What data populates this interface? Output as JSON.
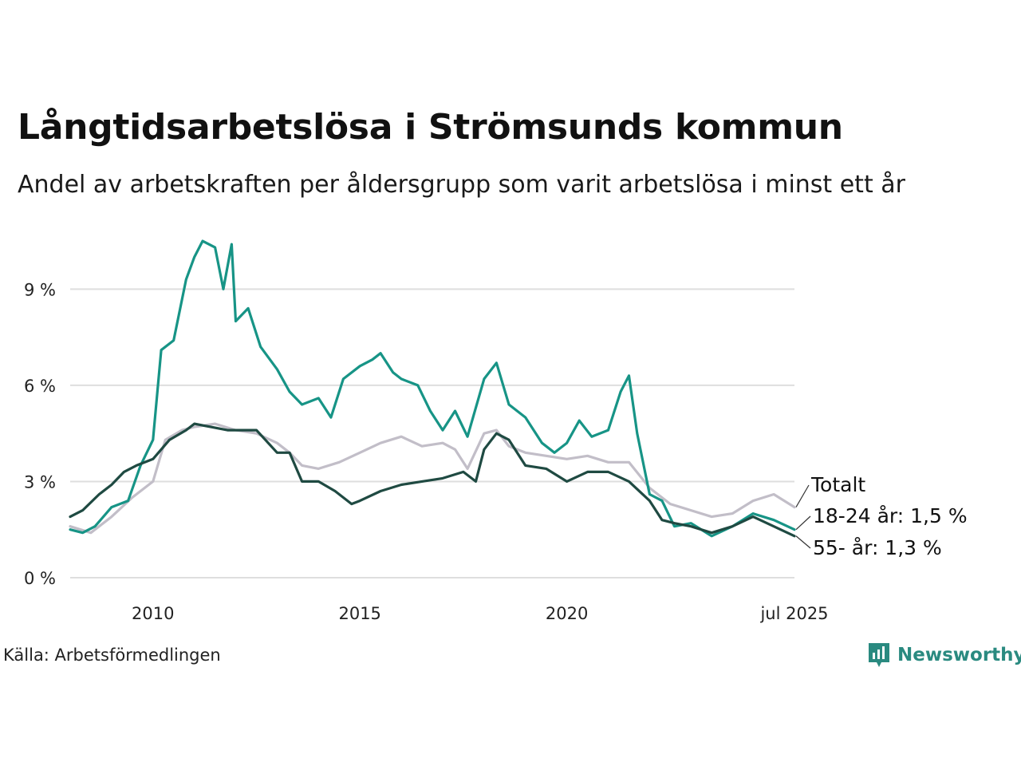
{
  "title": "Långtidsarbetslösa i Strömsunds kommun",
  "subtitle": "Andel av arbetskraften per åldersgrupp som varit arbetslösa i minst ett år",
  "source": "Källa: Arbetsförmedlingen",
  "brand": {
    "name": "Newsworthy",
    "icon": "newsworthy-logo-icon",
    "color": "#2a8a80"
  },
  "chart_data": {
    "type": "line",
    "y_unit": "%",
    "ylim": [
      0,
      10.8
    ],
    "xlim": [
      2008.0,
      2025.5
    ],
    "y_ticks": [
      {
        "value": 0,
        "label": "0 %"
      },
      {
        "value": 3,
        "label": "3 %"
      },
      {
        "value": 6,
        "label": "6 %"
      },
      {
        "value": 9,
        "label": "9 %"
      }
    ],
    "x_ticks": [
      {
        "value": 2010,
        "label": "2010"
      },
      {
        "value": 2015,
        "label": "2015"
      },
      {
        "value": 2020,
        "label": "2020"
      },
      {
        "value": 2025.5,
        "label": "jul 2025"
      }
    ],
    "grid": true,
    "legend": "end-labels",
    "series": [
      {
        "name": "Totalt",
        "end_label": "Totalt",
        "color": "#c2bec8",
        "points": [
          [
            2008.0,
            1.6
          ],
          [
            2008.5,
            1.4
          ],
          [
            2009.0,
            1.9
          ],
          [
            2009.5,
            2.5
          ],
          [
            2010.0,
            3.0
          ],
          [
            2010.3,
            4.3
          ],
          [
            2010.7,
            4.6
          ],
          [
            2011.0,
            4.7
          ],
          [
            2011.5,
            4.8
          ],
          [
            2012.0,
            4.6
          ],
          [
            2012.5,
            4.5
          ],
          [
            2013.0,
            4.2
          ],
          [
            2013.3,
            3.9
          ],
          [
            2013.6,
            3.5
          ],
          [
            2014.0,
            3.4
          ],
          [
            2014.5,
            3.6
          ],
          [
            2015.0,
            3.9
          ],
          [
            2015.5,
            4.2
          ],
          [
            2016.0,
            4.4
          ],
          [
            2016.5,
            4.1
          ],
          [
            2017.0,
            4.2
          ],
          [
            2017.3,
            4.0
          ],
          [
            2017.6,
            3.4
          ],
          [
            2018.0,
            4.5
          ],
          [
            2018.3,
            4.6
          ],
          [
            2018.6,
            4.1
          ],
          [
            2019.0,
            3.9
          ],
          [
            2019.5,
            3.8
          ],
          [
            2020.0,
            3.7
          ],
          [
            2020.5,
            3.8
          ],
          [
            2021.0,
            3.6
          ],
          [
            2021.5,
            3.6
          ],
          [
            2022.0,
            2.8
          ],
          [
            2022.5,
            2.3
          ],
          [
            2023.0,
            2.1
          ],
          [
            2023.5,
            1.9
          ],
          [
            2024.0,
            2.0
          ],
          [
            2024.5,
            2.4
          ],
          [
            2025.0,
            2.6
          ],
          [
            2025.5,
            2.2
          ]
        ]
      },
      {
        "name": "18-24 år",
        "end_label": "18-24 år: 1,5 %",
        "color": "#179486",
        "points": [
          [
            2008.0,
            1.5
          ],
          [
            2008.3,
            1.4
          ],
          [
            2008.6,
            1.6
          ],
          [
            2009.0,
            2.2
          ],
          [
            2009.4,
            2.4
          ],
          [
            2009.7,
            3.5
          ],
          [
            2010.0,
            4.3
          ],
          [
            2010.2,
            7.1
          ],
          [
            2010.5,
            7.4
          ],
          [
            2010.8,
            9.3
          ],
          [
            2011.0,
            10.0
          ],
          [
            2011.2,
            10.5
          ],
          [
            2011.5,
            10.3
          ],
          [
            2011.7,
            9.0
          ],
          [
            2011.9,
            10.4
          ],
          [
            2012.0,
            8.0
          ],
          [
            2012.3,
            8.4
          ],
          [
            2012.6,
            7.2
          ],
          [
            2013.0,
            6.5
          ],
          [
            2013.3,
            5.8
          ],
          [
            2013.6,
            5.4
          ],
          [
            2014.0,
            5.6
          ],
          [
            2014.3,
            5.0
          ],
          [
            2014.6,
            6.2
          ],
          [
            2015.0,
            6.6
          ],
          [
            2015.3,
            6.8
          ],
          [
            2015.5,
            7.0
          ],
          [
            2015.8,
            6.4
          ],
          [
            2016.0,
            6.2
          ],
          [
            2016.4,
            6.0
          ],
          [
            2016.7,
            5.2
          ],
          [
            2017.0,
            4.6
          ],
          [
            2017.3,
            5.2
          ],
          [
            2017.6,
            4.4
          ],
          [
            2018.0,
            6.2
          ],
          [
            2018.3,
            6.7
          ],
          [
            2018.6,
            5.4
          ],
          [
            2019.0,
            5.0
          ],
          [
            2019.4,
            4.2
          ],
          [
            2019.7,
            3.9
          ],
          [
            2020.0,
            4.2
          ],
          [
            2020.3,
            4.9
          ],
          [
            2020.6,
            4.4
          ],
          [
            2021.0,
            4.6
          ],
          [
            2021.3,
            5.8
          ],
          [
            2021.5,
            6.3
          ],
          [
            2021.7,
            4.5
          ],
          [
            2022.0,
            2.6
          ],
          [
            2022.3,
            2.4
          ],
          [
            2022.6,
            1.6
          ],
          [
            2023.0,
            1.7
          ],
          [
            2023.5,
            1.3
          ],
          [
            2024.0,
            1.6
          ],
          [
            2024.5,
            2.0
          ],
          [
            2025.0,
            1.8
          ],
          [
            2025.5,
            1.5
          ]
        ]
      },
      {
        "name": "55- år",
        "end_label": "55- år: 1,3 %",
        "color": "#1f4a42",
        "points": [
          [
            2008.0,
            1.9
          ],
          [
            2008.3,
            2.1
          ],
          [
            2008.7,
            2.6
          ],
          [
            2009.0,
            2.9
          ],
          [
            2009.3,
            3.3
          ],
          [
            2009.6,
            3.5
          ],
          [
            2010.0,
            3.7
          ],
          [
            2010.4,
            4.3
          ],
          [
            2010.8,
            4.6
          ],
          [
            2011.0,
            4.8
          ],
          [
            2011.4,
            4.7
          ],
          [
            2011.8,
            4.6
          ],
          [
            2012.0,
            4.6
          ],
          [
            2012.5,
            4.6
          ],
          [
            2013.0,
            3.9
          ],
          [
            2013.3,
            3.9
          ],
          [
            2013.6,
            3.0
          ],
          [
            2014.0,
            3.0
          ],
          [
            2014.4,
            2.7
          ],
          [
            2014.8,
            2.3
          ],
          [
            2015.0,
            2.4
          ],
          [
            2015.5,
            2.7
          ],
          [
            2016.0,
            2.9
          ],
          [
            2016.5,
            3.0
          ],
          [
            2017.0,
            3.1
          ],
          [
            2017.5,
            3.3
          ],
          [
            2017.8,
            3.0
          ],
          [
            2018.0,
            4.0
          ],
          [
            2018.3,
            4.5
          ],
          [
            2018.6,
            4.3
          ],
          [
            2019.0,
            3.5
          ],
          [
            2019.5,
            3.4
          ],
          [
            2020.0,
            3.0
          ],
          [
            2020.5,
            3.3
          ],
          [
            2021.0,
            3.3
          ],
          [
            2021.5,
            3.0
          ],
          [
            2022.0,
            2.4
          ],
          [
            2022.3,
            1.8
          ],
          [
            2022.6,
            1.7
          ],
          [
            2023.0,
            1.6
          ],
          [
            2023.5,
            1.4
          ],
          [
            2024.0,
            1.6
          ],
          [
            2024.5,
            1.9
          ],
          [
            2025.0,
            1.6
          ],
          [
            2025.5,
            1.3
          ]
        ]
      }
    ]
  }
}
